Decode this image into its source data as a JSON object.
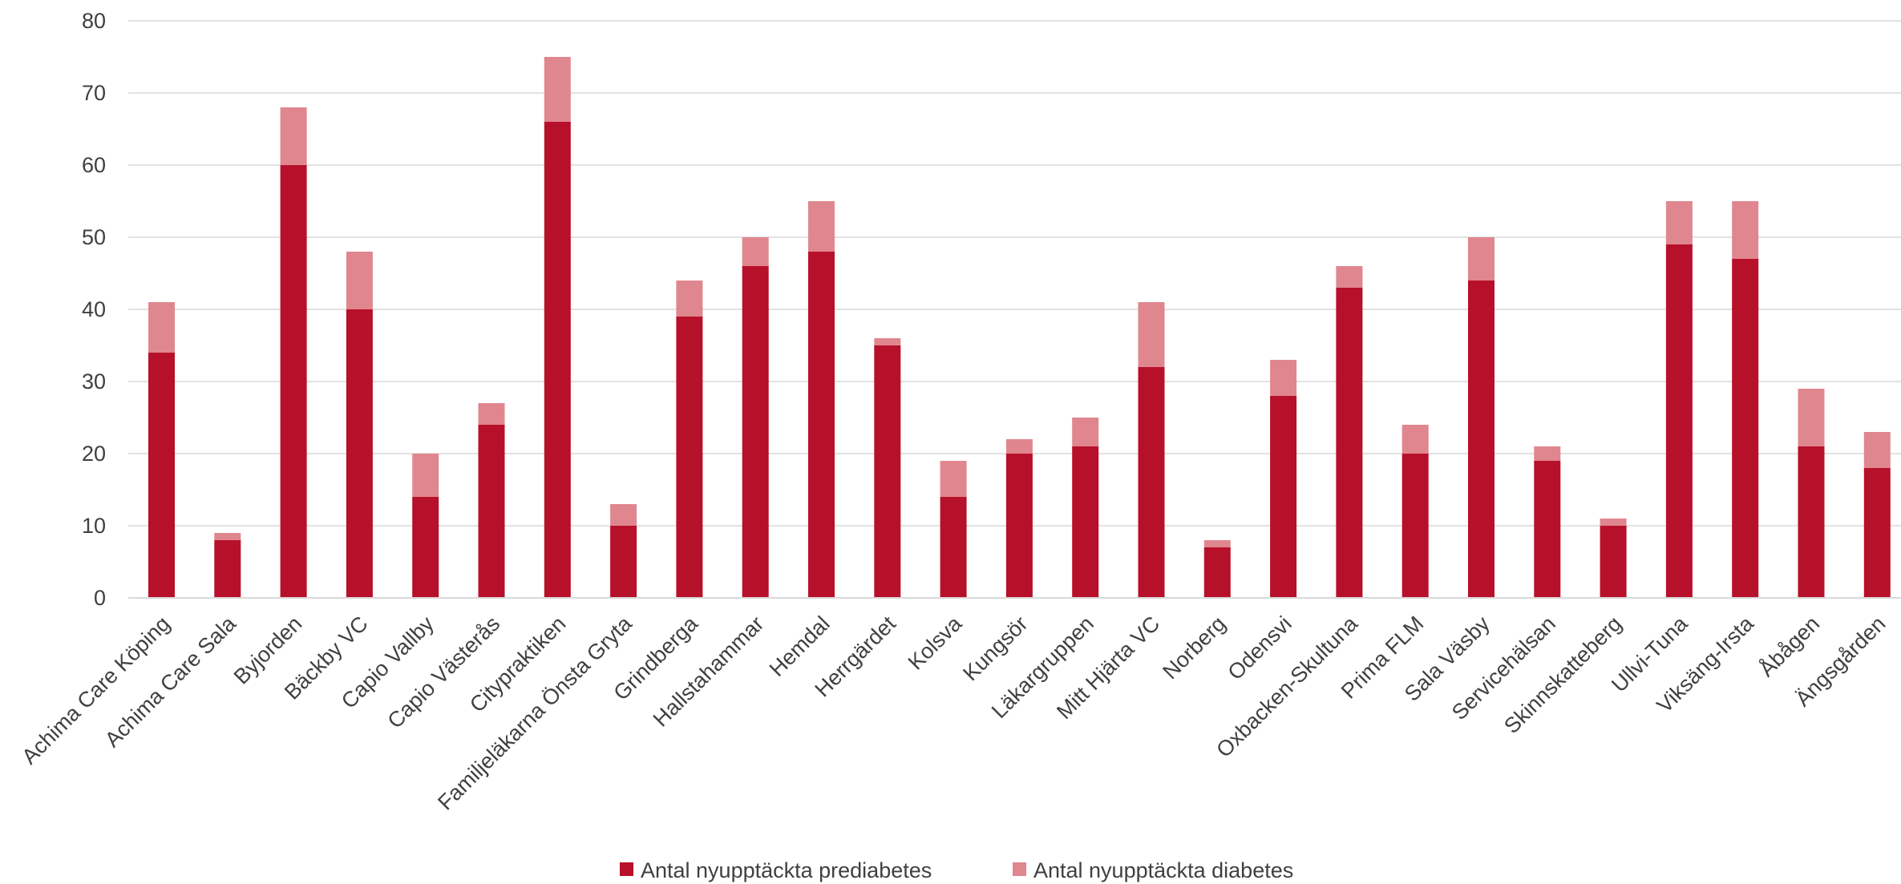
{
  "chart_data": {
    "type": "bar",
    "stacked": true,
    "categories": [
      "Achima Care Köping",
      "Achima Care Sala",
      "Byjorden",
      "Bäckby VC",
      "Capio Vallby",
      "Capio Västerås",
      "Citypraktiken",
      "Familjeläkarna Önsta Gryta",
      "Grindberga",
      "Hallstahammar",
      "Hemdal",
      "Herrgärdet",
      "Kolsva",
      "Kungsör",
      "Läkargruppen",
      "Mitt Hjärta VC",
      "Norberg",
      "Odensvi",
      "Oxbacken-Skultuna",
      "Prima FLM",
      "Sala Väsby",
      "Servicehälsan",
      "Skinnskatteberg",
      "Ullvi-Tuna",
      "Viksäng-Irsta",
      "Åbågen",
      "Ängsgården"
    ],
    "series": [
      {
        "name": "Antal nyupptäckta prediabetes",
        "color": "#b7102a",
        "values": [
          34,
          8,
          60,
          40,
          14,
          24,
          66,
          10,
          39,
          46,
          48,
          35,
          14,
          20,
          21,
          32,
          7,
          28,
          43,
          20,
          44,
          19,
          10,
          49,
          47,
          21,
          18
        ]
      },
      {
        "name": "Antal nyupptäckta diabetes",
        "color": "#e0868f",
        "values": [
          7,
          1,
          8,
          8,
          6,
          3,
          9,
          3,
          5,
          4,
          7,
          1,
          5,
          2,
          4,
          9,
          1,
          5,
          3,
          4,
          6,
          2,
          1,
          6,
          8,
          8,
          5
        ]
      }
    ],
    "yticks": [
      "0",
      "10",
      "20",
      "30",
      "40",
      "50",
      "60",
      "70",
      "80"
    ],
    "ylim": [
      0,
      80
    ],
    "grid": true,
    "legend_position": "bottom-center",
    "title": "",
    "xlabel": "",
    "ylabel": ""
  }
}
